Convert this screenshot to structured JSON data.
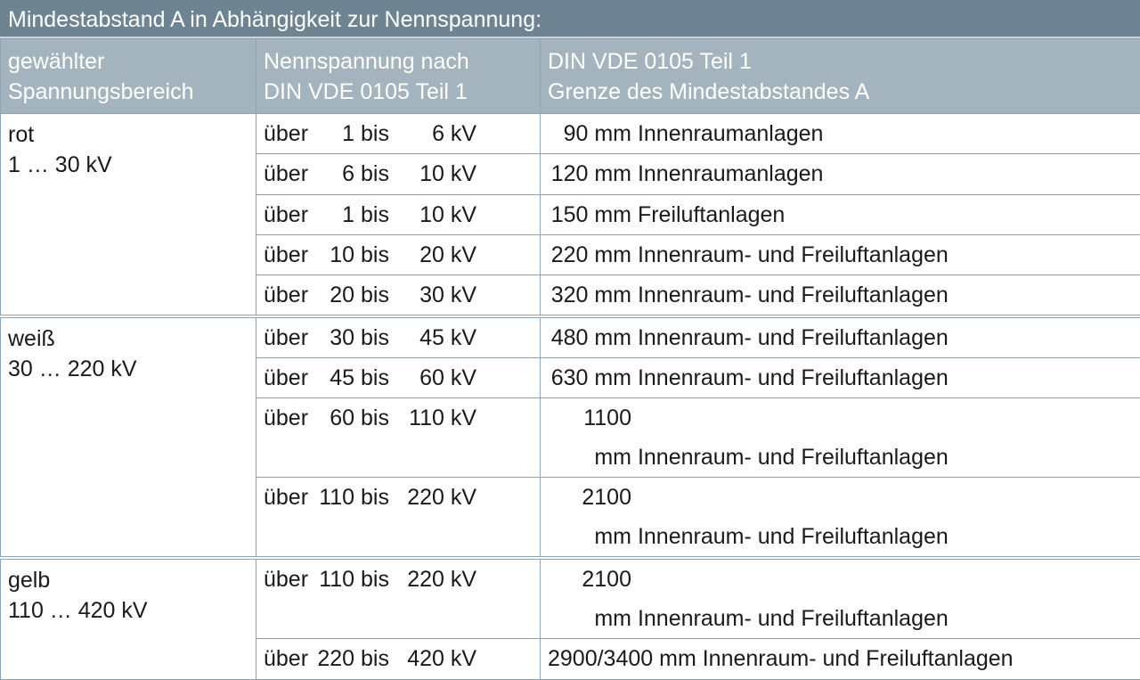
{
  "title": "Mindestabstand A in Abhängigkeit zur Nennspannung:",
  "headers": [
    "gewählter\nSpannungsbereich",
    "Nennspannung nach\nDIN VDE 0105 Teil 1",
    "DIN VDE 0105 Teil 1\nGrenze des Mindestabstandes A"
  ],
  "header_lines": [
    [
      "gewählter",
      "Spannungsbereich"
    ],
    [
      "Nennspannung nach",
      "DIN VDE 0105 Teil 1"
    ],
    [
      "DIN VDE 0105 Teil 1",
      "Grenze des Mindestabstandes A"
    ]
  ],
  "groups": [
    {
      "name": "rot",
      "range": "1 … 30 kV",
      "rows": [
        {
          "from": "1",
          "to": "6",
          "dist": "90 mm",
          "type": "Innenraumanlagen"
        },
        {
          "from": "6",
          "to": "10",
          "dist": "120 mm",
          "type": "Innenraumanlagen"
        },
        {
          "from": "1",
          "to": "10",
          "dist": "150 mm",
          "type": "Freiluftanlagen"
        },
        {
          "from": "10",
          "to": "20",
          "dist": "220 mm",
          "type": "Innenraum- und Freiluftanlagen"
        },
        {
          "from": "20",
          "to": "30",
          "dist": "320 mm",
          "type": "Innenraum- und Freiluftanlagen"
        }
      ]
    },
    {
      "name": "weiß",
      "range": "30 … 220 kV",
      "rows": [
        {
          "from": "30",
          "to": "45",
          "dist": "480 mm",
          "type": "Innenraum- und Freiluftanlagen"
        },
        {
          "from": "45",
          "to": "60",
          "dist": "630 mm",
          "type": "Innenraum- und Freiluftanlagen"
        },
        {
          "from": "60",
          "to": "110",
          "dist": "1100 mm",
          "type": "Innenraum- und Freiluftanlagen"
        },
        {
          "from": "110",
          "to": "220",
          "dist": "2100 mm",
          "type": "Innenraum- und Freiluftanlagen"
        }
      ]
    },
    {
      "name": "gelb",
      "range": "110 … 420 kV",
      "rows": [
        {
          "from": "110",
          "to": "220",
          "dist": "2100 mm",
          "type": "Innenraum- und Freiluftanlagen"
        },
        {
          "from": "220",
          "to": "420",
          "dist": "2900/3400 mm",
          "type": "Innenraum- und Freiluftanlagen"
        }
      ]
    }
  ],
  "words": {
    "over": "über",
    "to": "bis",
    "unit": "kV"
  },
  "colors": {
    "title_bg": "#6f8492",
    "header_bg": "#a4b4be",
    "border": "#8ea3b3"
  }
}
